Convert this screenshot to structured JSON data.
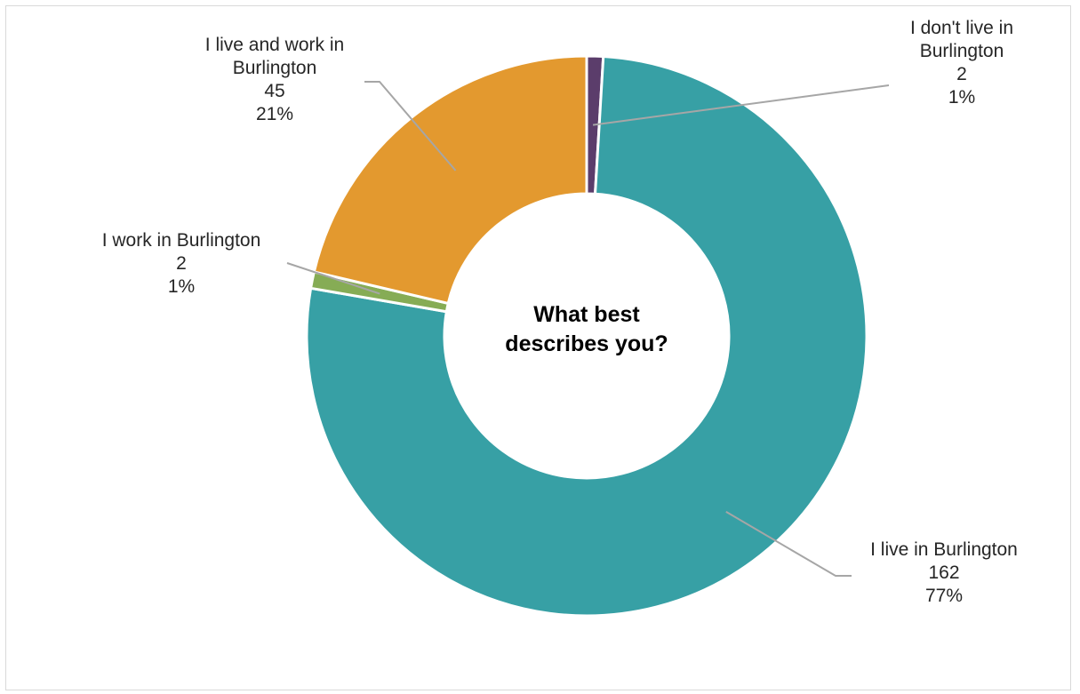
{
  "chart_data": {
    "type": "pie",
    "variant": "donut",
    "title": "What best describes you?",
    "title_lines": [
      "What best",
      "describes you?"
    ],
    "slices": [
      {
        "label": "I don't live in Burlington",
        "label_lines": [
          "I don't live in",
          "Burlington"
        ],
        "count": "2",
        "percent": "1%",
        "value": 2,
        "color": "#5b3d6b"
      },
      {
        "label": "I live in Burlington",
        "label_lines": [
          "I live in Burlington"
        ],
        "count": "162",
        "percent": "77%",
        "value": 162,
        "color": "#37a0a5"
      },
      {
        "label": "I work in Burlington",
        "label_lines": [
          "I work in Burlington"
        ],
        "count": "2",
        "percent": "1%",
        "value": 2,
        "color": "#86ac55"
      },
      {
        "label": "I live and work in Burlington",
        "label_lines": [
          "I live and work in",
          "Burlington"
        ],
        "count": "45",
        "percent": "21%",
        "value": 45,
        "color": "#e3992f"
      }
    ],
    "slice_order": "clockwise from top",
    "legend": "none",
    "leader_line_color": "#a6a6a6"
  }
}
